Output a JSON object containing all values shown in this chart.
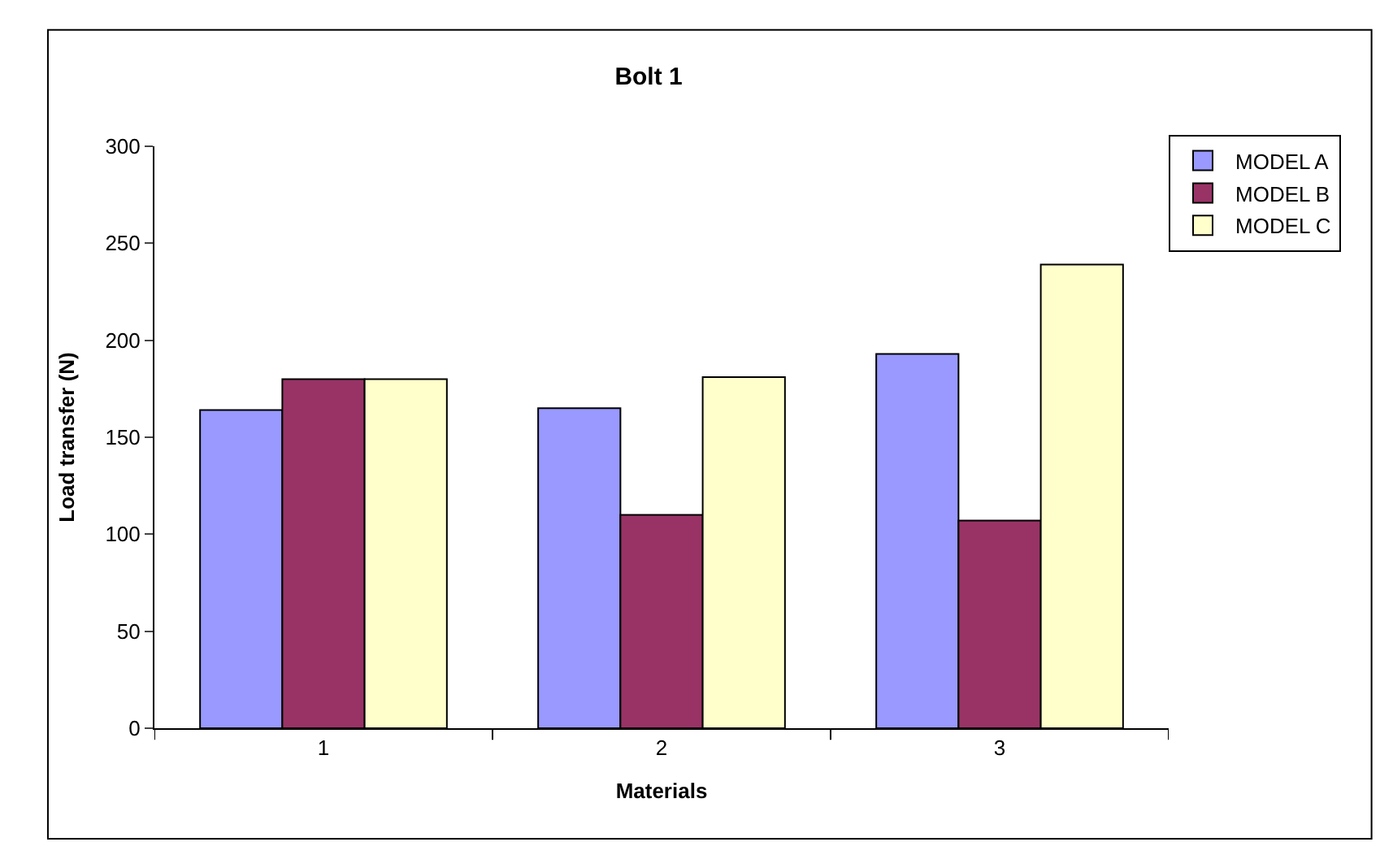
{
  "chart_data": {
    "type": "bar",
    "title": "Bolt 1",
    "xlabel": "Materials",
    "ylabel": "Load transfer (N)",
    "categories": [
      "1",
      "2",
      "3"
    ],
    "series": [
      {
        "name": "MODEL A",
        "color": "#9999ff",
        "values": [
          164,
          165,
          193
        ]
      },
      {
        "name": "MODEL B",
        "color": "#993366",
        "values": [
          180,
          110,
          107
        ]
      },
      {
        "name": "MODEL C",
        "color": "#ffffcc",
        "values": [
          180,
          181,
          239
        ]
      }
    ],
    "ylim": [
      0,
      300
    ],
    "yticks": [
      0,
      50,
      100,
      150,
      200,
      250,
      300
    ],
    "grid": false,
    "legend": "top right"
  }
}
